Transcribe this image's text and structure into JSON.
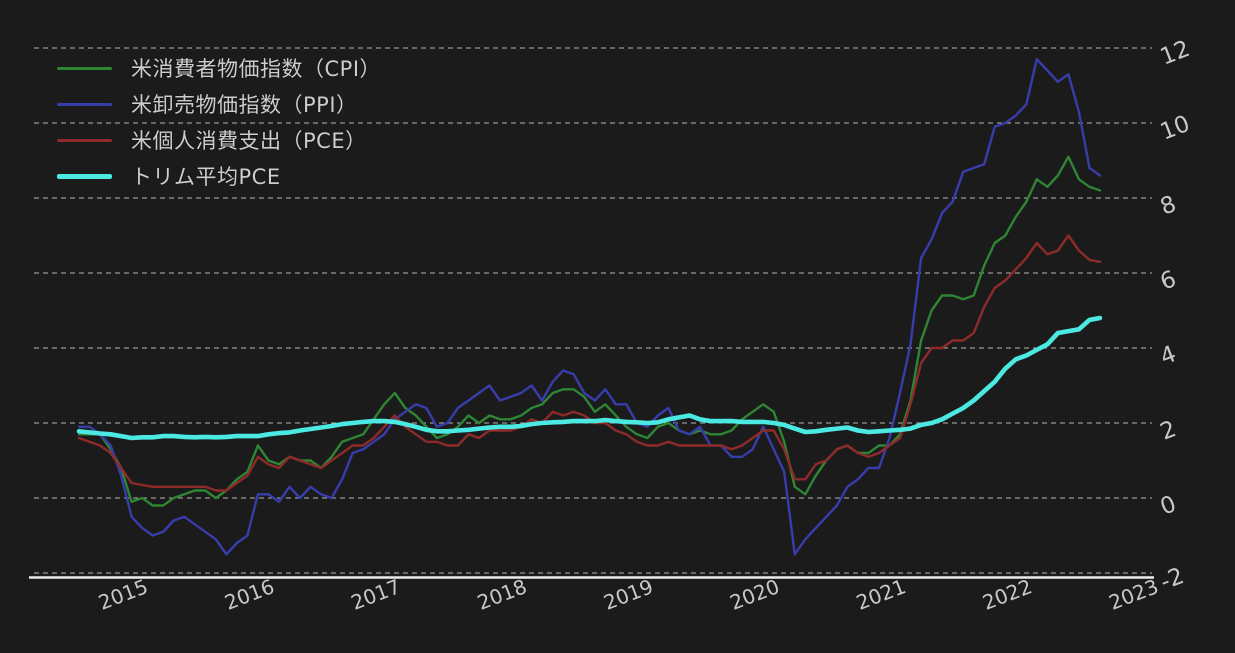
{
  "colors": {
    "background": "#1b1b1b",
    "grid": "#d0d0d0",
    "axis": "#ececec",
    "tick_text": "#c8c8c8",
    "legend_text": "#cdcdcd",
    "cpi": "#2e8533",
    "ppi": "#383dab",
    "pce": "#8f2a2a",
    "trimmed_pce": "#4be9e2"
  },
  "legend": {
    "position": "top-left",
    "items": [
      {
        "label": "米消費者物価指数（CPI）",
        "color": "#2e8533",
        "thick": false
      },
      {
        "label": "米卸売物価指数（PPI）",
        "color": "#383dab",
        "thick": false
      },
      {
        "label": "米個人消費支出（PCE）",
        "color": "#8f2a2a",
        "thick": false
      },
      {
        "label": "トリム平均PCE",
        "color": "#4be9e2",
        "thick": true
      }
    ]
  },
  "chart_data": {
    "type": "line",
    "title": "",
    "xlabel": "",
    "ylabel": "",
    "unit": "percent_yoy",
    "frequency": "monthly",
    "grid": "dashed-horizontal",
    "legend_position": "top-left",
    "ylim": [
      -2,
      12
    ],
    "y_ticks": [
      12,
      10,
      8,
      6,
      4,
      2,
      0,
      -2
    ],
    "x_tick_years": [
      "2015",
      "2016",
      "2017",
      "2018",
      "2019",
      "2020",
      "2021",
      "2022",
      "2023"
    ],
    "x_start": "2014-08",
    "x_end": "2022-09",
    "x": [
      "2014-08",
      "2014-09",
      "2014-10",
      "2014-11",
      "2014-12",
      "2015-01",
      "2015-02",
      "2015-03",
      "2015-04",
      "2015-05",
      "2015-06",
      "2015-07",
      "2015-08",
      "2015-09",
      "2015-10",
      "2015-11",
      "2015-12",
      "2016-01",
      "2016-02",
      "2016-03",
      "2016-04",
      "2016-05",
      "2016-06",
      "2016-07",
      "2016-08",
      "2016-09",
      "2016-10",
      "2016-11",
      "2016-12",
      "2017-01",
      "2017-02",
      "2017-03",
      "2017-04",
      "2017-05",
      "2017-06",
      "2017-07",
      "2017-08",
      "2017-09",
      "2017-10",
      "2017-11",
      "2017-12",
      "2018-01",
      "2018-02",
      "2018-03",
      "2018-04",
      "2018-05",
      "2018-06",
      "2018-07",
      "2018-08",
      "2018-09",
      "2018-10",
      "2018-11",
      "2018-12",
      "2019-01",
      "2019-02",
      "2019-03",
      "2019-04",
      "2019-05",
      "2019-06",
      "2019-07",
      "2019-08",
      "2019-09",
      "2019-10",
      "2019-11",
      "2019-12",
      "2020-01",
      "2020-02",
      "2020-03",
      "2020-04",
      "2020-05",
      "2020-06",
      "2020-07",
      "2020-08",
      "2020-09",
      "2020-10",
      "2020-11",
      "2020-12",
      "2021-01",
      "2021-02",
      "2021-03",
      "2021-04",
      "2021-05",
      "2021-06",
      "2021-07",
      "2021-08",
      "2021-09",
      "2021-10",
      "2021-11",
      "2021-12",
      "2022-01",
      "2022-02",
      "2022-03",
      "2022-04",
      "2022-05",
      "2022-06",
      "2022-07",
      "2022-08",
      "2022-09"
    ],
    "series": [
      {
        "name": "米消費者物価指数（CPI）",
        "color": "#2e8533",
        "line_width": 2.4,
        "values": [
          1.7,
          1.7,
          1.7,
          1.3,
          0.8,
          -0.1,
          0.0,
          -0.2,
          -0.2,
          0.0,
          0.1,
          0.2,
          0.2,
          0.0,
          0.2,
          0.5,
          0.7,
          1.4,
          1.0,
          0.9,
          1.1,
          1.0,
          1.0,
          0.8,
          1.1,
          1.5,
          1.6,
          1.7,
          2.1,
          2.5,
          2.8,
          2.4,
          2.2,
          1.9,
          1.6,
          1.7,
          1.9,
          2.2,
          2.0,
          2.2,
          2.1,
          2.1,
          2.2,
          2.4,
          2.5,
          2.8,
          2.9,
          2.9,
          2.7,
          2.3,
          2.5,
          2.2,
          1.9,
          1.7,
          1.6,
          1.9,
          2.0,
          1.8,
          1.7,
          1.8,
          1.7,
          1.7,
          1.8,
          2.1,
          2.3,
          2.5,
          2.3,
          1.5,
          0.3,
          0.1,
          0.6,
          1.0,
          1.3,
          1.4,
          1.2,
          1.2,
          1.4,
          1.4,
          1.7,
          2.6,
          4.2,
          5.0,
          5.4,
          5.4,
          5.3,
          5.4,
          6.2,
          6.8,
          7.0,
          7.5,
          7.9,
          8.5,
          8.3,
          8.6,
          9.1,
          8.5,
          8.3,
          8.2
        ]
      },
      {
        "name": "米卸売物価指数（PPI）",
        "color": "#383dab",
        "line_width": 2.4,
        "values": [
          1.9,
          1.9,
          1.7,
          1.4,
          0.6,
          -0.5,
          -0.8,
          -1.0,
          -0.9,
          -0.6,
          -0.5,
          -0.7,
          -0.9,
          -1.1,
          -1.5,
          -1.2,
          -1.0,
          0.1,
          0.1,
          -0.1,
          0.3,
          0.0,
          0.3,
          0.1,
          0.0,
          0.5,
          1.2,
          1.3,
          1.5,
          1.7,
          2.1,
          2.3,
          2.5,
          2.4,
          1.9,
          2.0,
          2.4,
          2.6,
          2.8,
          3.0,
          2.6,
          2.7,
          2.8,
          3.0,
          2.6,
          3.1,
          3.4,
          3.3,
          2.8,
          2.6,
          2.9,
          2.5,
          2.5,
          2.0,
          1.9,
          2.2,
          2.4,
          1.8,
          1.7,
          1.9,
          1.4,
          1.4,
          1.1,
          1.1,
          1.3,
          1.9,
          1.3,
          0.7,
          -1.5,
          -1.1,
          -0.8,
          -0.5,
          -0.2,
          0.3,
          0.5,
          0.8,
          0.8,
          1.6,
          2.8,
          4.1,
          6.4,
          6.9,
          7.6,
          7.9,
          8.7,
          8.8,
          8.9,
          9.9,
          10.0,
          10.2,
          10.5,
          11.7,
          11.4,
          11.1,
          11.3,
          10.3,
          8.8,
          8.6
        ]
      },
      {
        "name": "米個人消費支出（PCE）",
        "color": "#8f2a2a",
        "line_width": 2.4,
        "values": [
          1.6,
          1.5,
          1.4,
          1.2,
          0.8,
          0.4,
          0.35,
          0.3,
          0.3,
          0.3,
          0.3,
          0.3,
          0.3,
          0.2,
          0.2,
          0.4,
          0.6,
          1.1,
          0.9,
          0.8,
          1.1,
          1.0,
          0.9,
          0.8,
          1.0,
          1.2,
          1.4,
          1.4,
          1.6,
          1.9,
          2.2,
          1.9,
          1.7,
          1.5,
          1.5,
          1.4,
          1.4,
          1.7,
          1.6,
          1.8,
          1.8,
          1.8,
          1.9,
          2.1,
          2.0,
          2.3,
          2.2,
          2.3,
          2.2,
          2.0,
          2.0,
          1.8,
          1.7,
          1.5,
          1.4,
          1.4,
          1.5,
          1.4,
          1.4,
          1.4,
          1.4,
          1.4,
          1.3,
          1.4,
          1.6,
          1.8,
          1.8,
          1.3,
          0.5,
          0.5,
          0.9,
          1.0,
          1.3,
          1.4,
          1.2,
          1.1,
          1.2,
          1.4,
          1.6,
          2.5,
          3.6,
          4.0,
          4.0,
          4.2,
          4.2,
          4.4,
          5.1,
          5.6,
          5.8,
          6.1,
          6.4,
          6.8,
          6.5,
          6.6,
          7.0,
          6.6,
          6.35,
          6.3
        ]
      },
      {
        "name": "トリム平均PCE",
        "color": "#4be9e2",
        "line_width": 4.6,
        "values": [
          1.78,
          1.75,
          1.72,
          1.7,
          1.65,
          1.6,
          1.62,
          1.62,
          1.65,
          1.65,
          1.63,
          1.62,
          1.63,
          1.62,
          1.63,
          1.65,
          1.65,
          1.65,
          1.7,
          1.73,
          1.75,
          1.8,
          1.84,
          1.88,
          1.92,
          1.97,
          2.0,
          2.03,
          2.05,
          2.05,
          2.03,
          1.97,
          1.9,
          1.82,
          1.78,
          1.78,
          1.8,
          1.82,
          1.85,
          1.88,
          1.9,
          1.9,
          1.92,
          1.97,
          2.0,
          2.02,
          2.03,
          2.05,
          2.05,
          2.05,
          2.08,
          2.05,
          2.03,
          2.02,
          2.0,
          2.02,
          2.1,
          2.15,
          2.2,
          2.1,
          2.05,
          2.05,
          2.05,
          2.03,
          2.03,
          2.03,
          2.0,
          1.95,
          1.85,
          1.76,
          1.78,
          1.82,
          1.85,
          1.88,
          1.8,
          1.76,
          1.78,
          1.8,
          1.82,
          1.85,
          1.95,
          2.0,
          2.1,
          2.25,
          2.4,
          2.6,
          2.85,
          3.1,
          3.45,
          3.7,
          3.8,
          3.95,
          4.1,
          4.4,
          4.45,
          4.5,
          4.75,
          4.8
        ]
      }
    ]
  }
}
